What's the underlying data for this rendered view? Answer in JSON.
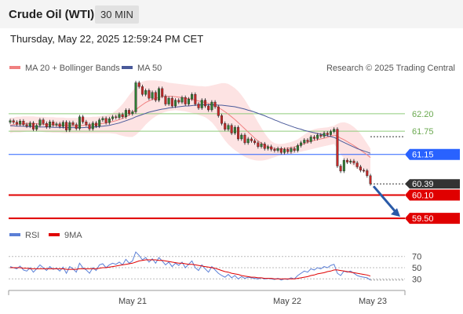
{
  "header": {
    "title": "Crude Oil (WTI)",
    "interval": "30 MIN",
    "timestamp": "Thursday, May 22, 2025 12:59:24 PM CET"
  },
  "attribution": "Research © 2025 Trading Central",
  "colors": {
    "bollinger": "#f08080",
    "bollinger_fill": "#fde3e3",
    "ma50": "#4a5a9a",
    "pivot": "#2962ff",
    "support": "#e00000",
    "resistance_lines": "#8fcc7a",
    "up_candle": "#2e7d32",
    "down_candle": "#c62828",
    "rsi": "#5b7fd6",
    "rsi_ma": "#e00000",
    "arrow": "#2a5aa8"
  },
  "chart_data": [
    {
      "type": "candlestick",
      "title": "",
      "legend": [
        {
          "name": "MA 20 + Bollinger Bands",
          "color": "#f08080"
        },
        {
          "name": "MA 50",
          "color": "#4a5a9a"
        }
      ],
      "legend_position": "top-left",
      "x_ticks": [
        "May 21",
        "May 22",
        "May 23"
      ],
      "ylim": [
        59.3,
        63.15
      ],
      "levels": [
        {
          "value": 62.2,
          "label": "62.20",
          "kind": "resistance"
        },
        {
          "value": 61.75,
          "label": "61.75",
          "kind": "resistance"
        },
        {
          "value": 61.15,
          "label": "61.15",
          "kind": "pivot"
        },
        {
          "value": 60.39,
          "label": "60.39",
          "kind": "last"
        },
        {
          "value": 60.1,
          "label": "60.10",
          "kind": "support"
        },
        {
          "value": 59.5,
          "label": "59.50",
          "kind": "support"
        }
      ],
      "close": [
        62.02,
        61.98,
        61.93,
        62.01,
        61.92,
        61.88,
        61.96,
        61.8,
        61.9,
        62.04,
        61.95,
        61.86,
        61.99,
        61.91,
        61.94,
        61.87,
        61.98,
        61.78,
        61.97,
        61.92,
        61.82,
        62.12,
        61.99,
        61.92,
        61.81,
        61.96,
        61.88,
        62.04,
        62.08,
        61.97,
        62.07,
        62.12,
        62.1,
        62.18,
        62.12,
        62.29,
        62.2,
        62.25,
        63.0,
        62.9,
        62.7,
        62.8,
        62.6,
        62.75,
        62.55,
        62.85,
        62.65,
        62.45,
        62.6,
        62.4,
        62.55,
        62.5,
        62.62,
        62.45,
        62.58,
        62.7,
        62.45,
        62.35,
        62.55,
        62.4,
        62.3,
        62.5,
        62.38,
        62.15,
        61.95,
        61.8,
        61.9,
        61.7,
        61.85,
        61.55,
        61.65,
        61.45,
        61.55,
        61.5,
        61.45,
        61.35,
        61.42,
        61.3,
        61.35,
        61.28,
        61.25,
        61.3,
        61.2,
        61.28,
        61.22,
        61.3,
        61.25,
        61.38,
        61.45,
        61.52,
        61.48,
        61.6,
        61.56,
        61.65,
        61.62,
        61.7,
        61.66,
        61.74,
        61.8,
        60.85,
        60.72,
        61.0,
        60.95,
        60.98,
        60.93,
        60.83,
        60.74,
        60.73,
        60.6,
        60.39
      ],
      "ma20": [
        61.9,
        61.92,
        61.93,
        61.93,
        61.94,
        61.95,
        61.95,
        61.95,
        61.94,
        61.94,
        61.93,
        61.92,
        61.92,
        61.91,
        61.91,
        61.9,
        61.9,
        61.9,
        61.89,
        61.89,
        61.89,
        61.9,
        61.9,
        61.91,
        61.91,
        61.92,
        61.93,
        61.94,
        61.95,
        61.96,
        61.98,
        62.0,
        62.02,
        62.05,
        62.08,
        62.12,
        62.17,
        62.22,
        62.3,
        62.37,
        62.43,
        62.49,
        62.53,
        62.57,
        62.6,
        62.62,
        62.64,
        62.65,
        62.65,
        62.65,
        62.64,
        62.63,
        62.62,
        62.6,
        62.59,
        62.57,
        62.55,
        62.53,
        62.51,
        62.49,
        62.47,
        62.44,
        62.41,
        62.36,
        62.31,
        62.25,
        62.19,
        62.12,
        62.05,
        61.97,
        61.89,
        61.81,
        61.73,
        61.65,
        61.57,
        61.5,
        61.44,
        61.39,
        61.35,
        61.32,
        61.3,
        61.29,
        61.29,
        61.3,
        61.31,
        61.32,
        61.34,
        61.37,
        61.4,
        61.43,
        61.46,
        61.49,
        61.51,
        61.53,
        61.55,
        61.57,
        61.59,
        61.62,
        61.65,
        61.62,
        61.57,
        61.53,
        61.48,
        61.43,
        61.38,
        61.32,
        61.26,
        61.2,
        61.14,
        61.07
      ],
      "bb_upper": [
        62.1,
        62.1,
        62.12,
        62.12,
        62.13,
        62.13,
        62.13,
        62.13,
        62.12,
        62.12,
        62.12,
        62.11,
        62.11,
        62.11,
        62.1,
        62.1,
        62.1,
        62.09,
        62.09,
        62.09,
        62.09,
        62.1,
        62.1,
        62.11,
        62.11,
        62.12,
        62.12,
        62.13,
        62.15,
        62.16,
        62.18,
        62.22,
        62.28,
        62.36,
        62.45,
        62.56,
        62.68,
        62.78,
        62.9,
        62.98,
        63.03,
        63.05,
        63.06,
        63.06,
        63.06,
        63.05,
        63.04,
        63.02,
        63.0,
        62.99,
        62.98,
        62.97,
        62.96,
        62.95,
        62.94,
        62.93,
        62.92,
        62.91,
        62.91,
        62.9,
        62.91,
        62.93,
        62.95,
        62.97,
        62.99,
        62.99,
        62.97,
        62.92,
        62.86,
        62.78,
        62.68,
        62.56,
        62.42,
        62.28,
        62.13,
        61.98,
        61.84,
        61.7,
        61.58,
        61.49,
        61.44,
        61.42,
        61.42,
        61.43,
        61.45,
        61.47,
        61.5,
        61.54,
        61.6,
        61.66,
        61.72,
        61.77,
        61.8,
        61.82,
        61.83,
        61.84,
        61.85,
        61.87,
        61.89,
        61.94,
        61.97,
        61.98,
        61.96,
        61.92,
        61.86,
        61.78,
        61.68,
        61.56,
        61.43,
        61.3
      ],
      "bb_lower": [
        61.7,
        61.72,
        61.72,
        61.72,
        61.73,
        61.74,
        61.74,
        61.74,
        61.74,
        61.74,
        61.73,
        61.72,
        61.72,
        61.71,
        61.71,
        61.71,
        61.7,
        61.7,
        61.7,
        61.7,
        61.7,
        61.7,
        61.7,
        61.7,
        61.7,
        61.7,
        61.7,
        61.7,
        61.7,
        61.7,
        61.7,
        61.69,
        61.68,
        61.65,
        61.63,
        61.61,
        61.6,
        61.6,
        61.65,
        61.73,
        61.82,
        61.92,
        62.0,
        62.07,
        62.13,
        62.18,
        62.22,
        62.25,
        62.27,
        62.28,
        62.29,
        62.28,
        62.27,
        62.26,
        62.24,
        62.22,
        62.2,
        62.17,
        62.14,
        62.11,
        62.05,
        61.98,
        61.88,
        61.76,
        61.63,
        61.51,
        61.41,
        61.33,
        61.26,
        61.2,
        61.14,
        61.09,
        61.05,
        61.02,
        61.0,
        60.99,
        60.99,
        61.0,
        61.02,
        61.05,
        61.08,
        61.11,
        61.13,
        61.14,
        61.15,
        61.16,
        61.18,
        61.2,
        61.22,
        61.24,
        61.26,
        61.28,
        61.3,
        61.32,
        61.34,
        61.36,
        61.38,
        61.4,
        61.42,
        61.3,
        61.16,
        61.05,
        60.97,
        60.9,
        60.84,
        60.78,
        60.74,
        60.7,
        60.67,
        60.65
      ],
      "ma50": [
        61.89,
        61.89,
        61.88,
        61.88,
        61.88,
        61.87,
        61.87,
        61.87,
        61.87,
        61.86,
        61.86,
        61.86,
        61.86,
        61.85,
        61.85,
        61.85,
        61.84,
        61.84,
        61.84,
        61.84,
        61.84,
        61.84,
        61.84,
        61.85,
        61.85,
        61.86,
        61.86,
        61.87,
        61.88,
        61.89,
        61.9,
        61.92,
        61.94,
        61.96,
        61.99,
        62.02,
        62.05,
        62.08,
        62.12,
        62.15,
        62.18,
        62.21,
        62.24,
        62.26,
        62.28,
        62.3,
        62.32,
        62.33,
        62.35,
        62.36,
        62.37,
        62.38,
        62.39,
        62.4,
        62.4,
        62.41,
        62.42,
        62.42,
        62.43,
        62.43,
        62.43,
        62.43,
        62.43,
        62.42,
        62.42,
        62.41,
        62.4,
        62.39,
        62.38,
        62.36,
        62.34,
        62.32,
        62.29,
        62.27,
        62.24,
        62.21,
        62.18,
        62.15,
        62.11,
        62.08,
        62.04,
        62.01,
        61.97,
        61.94,
        61.91,
        61.88,
        61.85,
        61.82,
        61.8,
        61.77,
        61.75,
        61.73,
        61.71,
        61.69,
        61.67,
        61.65,
        61.63,
        61.61,
        61.59,
        61.55,
        61.5,
        61.46,
        61.42,
        61.38,
        61.34,
        61.3,
        61.27,
        61.24,
        61.21,
        61.18
      ]
    },
    {
      "type": "line",
      "title": "",
      "legend": [
        {
          "name": "RSI",
          "color": "#5b7fd6"
        },
        {
          "name": "9MA",
          "color": "#e00000"
        }
      ],
      "legend_position": "top-left",
      "ylim": [
        15,
        85
      ],
      "y_ticks": [
        70,
        50,
        30
      ],
      "rsi": [
        52,
        50,
        48,
        53,
        46,
        44,
        50,
        42,
        48,
        55,
        50,
        45,
        52,
        47,
        49,
        44,
        51,
        40,
        52,
        48,
        42,
        58,
        50,
        46,
        40,
        50,
        45,
        55,
        57,
        50,
        55,
        58,
        56,
        60,
        55,
        65,
        58,
        62,
        78,
        72,
        64,
        68,
        60,
        66,
        58,
        68,
        62,
        55,
        60,
        52,
        58,
        54,
        60,
        50,
        56,
        62,
        50,
        45,
        55,
        48,
        42,
        52,
        46,
        40,
        36,
        33,
        38,
        32,
        36,
        30,
        34,
        31,
        33,
        32,
        31,
        30,
        32,
        30,
        31,
        30,
        29,
        31,
        28,
        30,
        29,
        32,
        30,
        36,
        40,
        44,
        42,
        48,
        46,
        50,
        48,
        52,
        50,
        54,
        56,
        40,
        36,
        44,
        42,
        44,
        40,
        36,
        34,
        33,
        32,
        28
      ],
      "rsi_ma": [
        50,
        50,
        50,
        50,
        49,
        49,
        48,
        48,
        48,
        48,
        48,
        48,
        48,
        48,
        48,
        48,
        48,
        47,
        47,
        47,
        47,
        48,
        48,
        48,
        48,
        48,
        48,
        49,
        50,
        50,
        51,
        52,
        53,
        54,
        55,
        56,
        57,
        58,
        60,
        62,
        63,
        64,
        64,
        64,
        64,
        63,
        63,
        62,
        61,
        60,
        59,
        58,
        58,
        57,
        56,
        56,
        55,
        54,
        53,
        52,
        51,
        50,
        49,
        47,
        45,
        43,
        42,
        40,
        39,
        38,
        36,
        35,
        34,
        33,
        33,
        32,
        32,
        31,
        31,
        31,
        30,
        30,
        30,
        30,
        30,
        30,
        30,
        31,
        32,
        33,
        34,
        36,
        37,
        39,
        40,
        41,
        43,
        44,
        46,
        46,
        45,
        44,
        43,
        42,
        41,
        40,
        39,
        38,
        37,
        35
      ]
    }
  ]
}
